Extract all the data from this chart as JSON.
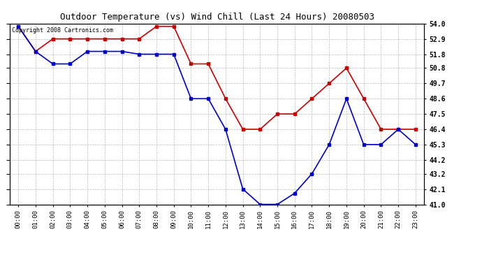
{
  "title": "Outdoor Temperature (vs) Wind Chill (Last 24 Hours) 20080503",
  "copyright": "Copyright 2008 Cartronics.com",
  "x_labels": [
    "00:00",
    "01:00",
    "02:00",
    "03:00",
    "04:00",
    "05:00",
    "06:00",
    "07:00",
    "08:00",
    "09:00",
    "10:00",
    "11:00",
    "12:00",
    "13:00",
    "14:00",
    "15:00",
    "16:00",
    "17:00",
    "18:00",
    "19:00",
    "20:00",
    "21:00",
    "22:00",
    "23:00"
  ],
  "temp_red": [
    53.8,
    52.0,
    52.9,
    52.9,
    52.9,
    52.9,
    52.9,
    52.9,
    53.8,
    53.8,
    51.1,
    51.1,
    48.6,
    46.4,
    46.4,
    47.5,
    47.5,
    48.6,
    49.7,
    50.8,
    48.6,
    46.4,
    46.4,
    46.4
  ],
  "temp_blue": [
    53.8,
    52.0,
    51.1,
    51.1,
    52.0,
    52.0,
    52.0,
    51.8,
    51.8,
    51.8,
    48.6,
    48.6,
    46.4,
    42.1,
    41.0,
    41.0,
    41.8,
    43.2,
    45.3,
    48.6,
    45.3,
    45.3,
    46.4,
    45.3
  ],
  "ylim_min": 41.0,
  "ylim_max": 54.0,
  "yticks": [
    41.0,
    42.1,
    43.2,
    44.2,
    45.3,
    46.4,
    47.5,
    48.6,
    49.7,
    50.8,
    51.8,
    52.9,
    54.0
  ],
  "red_color": "#cc0000",
  "blue_color": "#0000cc",
  "bg_color": "#ffffff",
  "grid_color": "#bbbbbb",
  "title_fontsize": 9,
  "copyright_fontsize": 6,
  "tick_fontsize": 6.5,
  "ytick_fontsize": 7
}
